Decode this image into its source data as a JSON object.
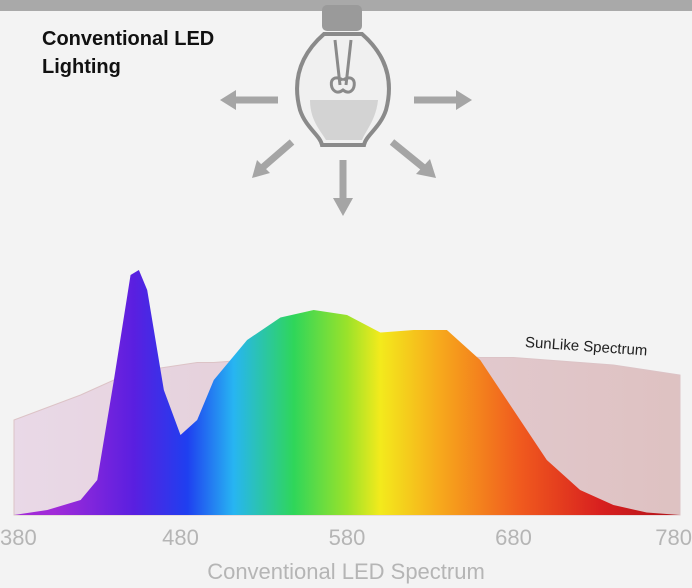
{
  "chart_data": {
    "type": "area",
    "title": "Conventional LED Lighting",
    "x_label": "Conventional LED Spectrum",
    "x": [
      380,
      400,
      420,
      430,
      440,
      450,
      455,
      460,
      470,
      480,
      490,
      500,
      520,
      540,
      560,
      580,
      600,
      620,
      640,
      660,
      680,
      700,
      720,
      740,
      760,
      780
    ],
    "series": [
      {
        "values": [
          0,
          2,
          6,
          14,
          54,
          96,
          98,
          90,
          50,
          32,
          38,
          54,
          70,
          79,
          82,
          80,
          73,
          74,
          74,
          62,
          42,
          22,
          10,
          4,
          1,
          0
        ]
      },
      {
        "name": "SunLike Spectrum",
        "color": "#dcc3c6",
        "values": [
          38,
          43,
          48,
          51,
          54,
          56,
          57,
          58,
          59,
          60,
          61,
          61,
          62,
          63,
          64,
          64,
          64,
          64,
          64,
          63,
          63,
          62,
          61,
          60,
          58,
          56
        ]
      }
    ],
    "xlim": [
      380,
      780
    ],
    "ylim": [
      0,
      100
    ],
    "xticks": [
      380,
      480,
      580,
      680,
      780
    ]
  }
}
